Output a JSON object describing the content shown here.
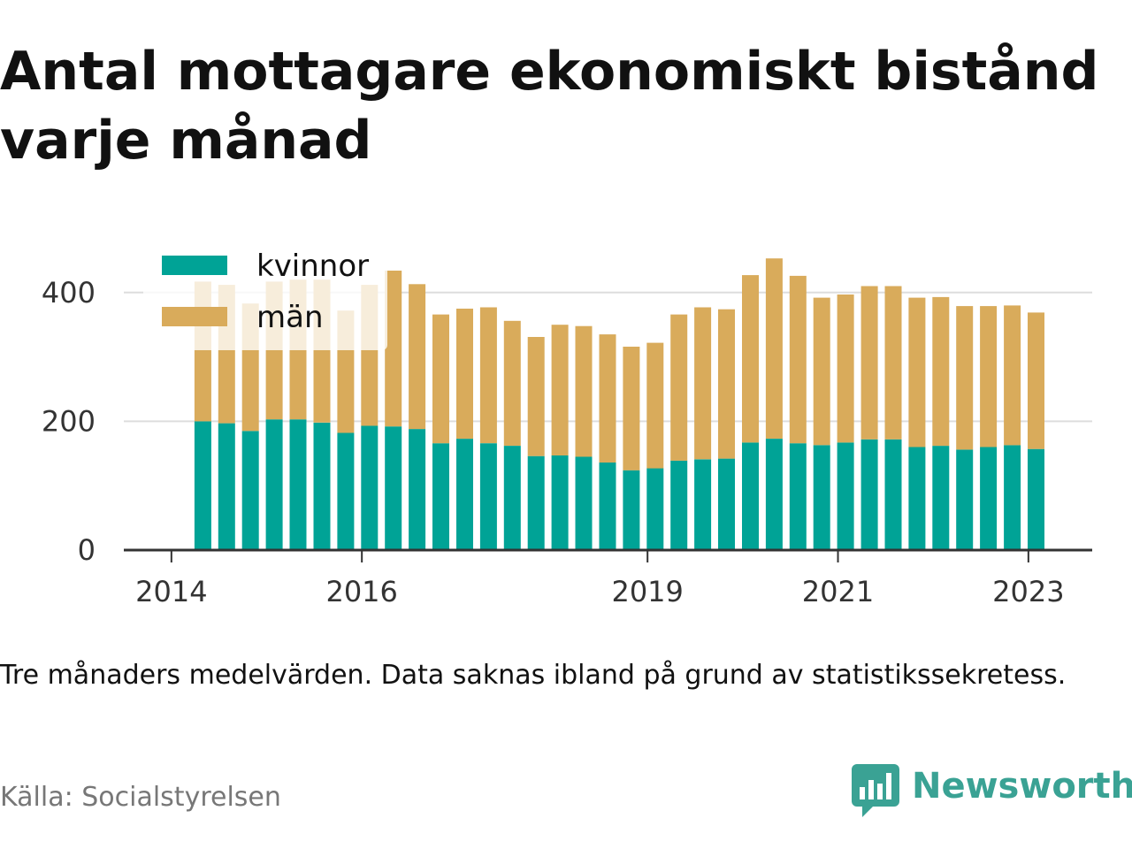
{
  "title": "Antal mottagare ekonomiskt bistånd varje månad",
  "note": "Tre månaders medelvärden. Data saknas ibland på grund av statistikssekretess.",
  "source": "Källa: Socialstyrelsen",
  "brand": {
    "name": "Newsworthy",
    "icon": "newsworthy-logo-icon",
    "color": "#3aa294"
  },
  "chart_data": {
    "type": "bar",
    "stacked": true,
    "title": "Antal mottagare ekonomiskt bistånd varje månad",
    "xlabel": "",
    "ylabel": "",
    "ylim": [
      0,
      460
    ],
    "yticks": [
      0,
      200,
      400
    ],
    "xticks": [
      {
        "label": "2014",
        "x": 2014.0
      },
      {
        "label": "2016",
        "x": 2016.0
      },
      {
        "label": "2019",
        "x": 2019.0
      },
      {
        "label": "2021",
        "x": 2021.0
      },
      {
        "label": "2023",
        "x": 2023.0
      }
    ],
    "xlim": [
      2013.5,
      2023.67
    ],
    "grid": "horizontal",
    "legend_position": "top-left",
    "x": [
      2014.33,
      2014.58,
      2014.83,
      2015.08,
      2015.33,
      2015.58,
      2015.83,
      2016.08,
      2016.33,
      2016.58,
      2016.83,
      2017.08,
      2017.33,
      2017.58,
      2017.83,
      2018.08,
      2018.33,
      2018.58,
      2018.83,
      2019.08,
      2019.33,
      2019.58,
      2019.83,
      2020.08,
      2020.33,
      2020.58,
      2020.83,
      2021.08,
      2021.33,
      2021.58,
      2021.83,
      2022.08,
      2022.33,
      2022.58,
      2022.83,
      2023.08
    ],
    "series": [
      {
        "name": "kvinnor",
        "color": "#00a396",
        "values": [
          200,
          197,
          185,
          203,
          203,
          198,
          182,
          193,
          192,
          188,
          166,
          173,
          166,
          162,
          146,
          147,
          145,
          136,
          124,
          127,
          139,
          141,
          142,
          167,
          173,
          166,
          163,
          167,
          172,
          172,
          160,
          162,
          156,
          160,
          163,
          157
        ]
      },
      {
        "name": "män",
        "color": "#d9ab5b",
        "values": [
          217,
          215,
          198,
          214,
          217,
          222,
          190,
          219,
          242,
          225,
          200,
          202,
          211,
          194,
          185,
          203,
          203,
          199,
          192,
          195,
          227,
          236,
          232,
          260,
          280,
          260,
          229,
          230,
          238,
          238,
          232,
          231,
          223,
          219,
          217,
          212
        ]
      }
    ]
  }
}
